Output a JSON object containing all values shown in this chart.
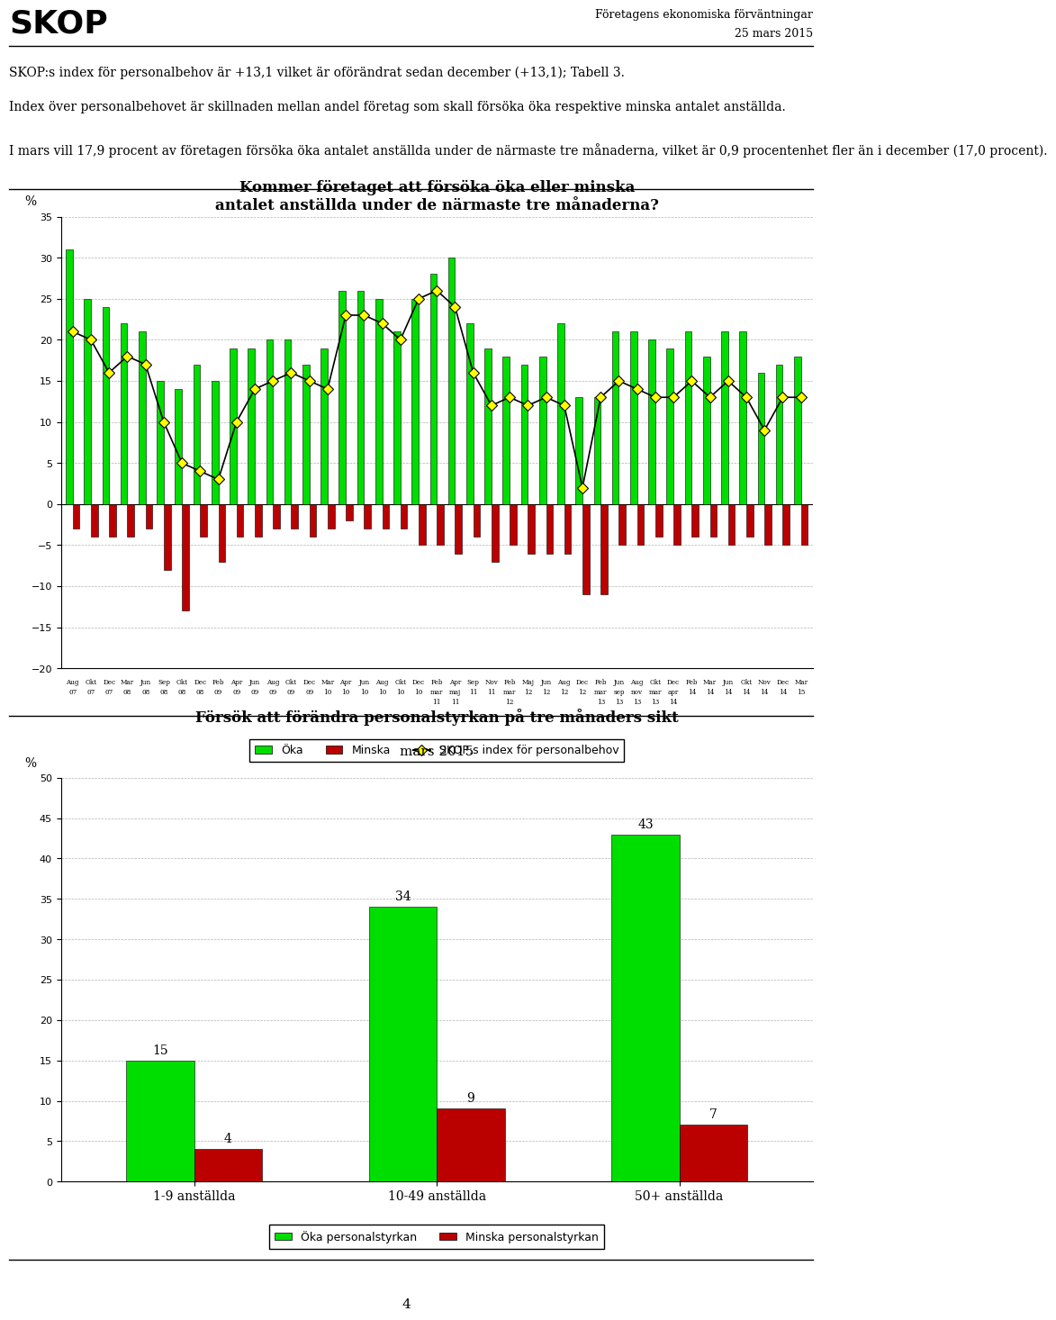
{
  "skop_label": "SKOP",
  "header_right_line1": "Företagens ekonomiska förväntningar",
  "header_right_line2": "25 mars 2015",
  "text1": "SKOP:s index för personalbehov är +13,1 vilket är oförändrat sedan december (+13,1); Tabell 3.",
  "text2": "Index över personalbehovet är skillnaden mellan andel företag som skall försöka öka respektive minska antalet anställda.",
  "text3": "I mars vill 17,9 procent av företagen försöka öka antalet anställda under de närmaste tre månaderna, vilket är 0,9 procentenhet fler än i december (17,0 procent).",
  "chart1_title_line1": "Kommer företaget att försöka öka eller minska",
  "chart1_title_line2": "antalet anställda under de närmaste tre månaderna?",
  "chart1_ylabel": "%",
  "chart1_ylim": [
    -20,
    35
  ],
  "chart1_yticks": [
    -20,
    -15,
    -10,
    -5,
    0,
    5,
    10,
    15,
    20,
    25,
    30,
    35
  ],
  "chart1_x_labels_row1": [
    "Aug",
    "Okt",
    "Dec",
    "Mar",
    "Jun",
    "Sep",
    "Okt",
    "Dec",
    "Feb",
    "Apr",
    "Jun",
    "Aug",
    "Okt",
    "Dec",
    "Mar",
    "Apr",
    "Jun",
    "Aug",
    "Okt",
    "Dec",
    "Feb",
    "Apr",
    "Sep",
    "Nov",
    "Feb",
    "Maj",
    "Jun",
    "Aug",
    "Dec",
    "Feb",
    "Jun",
    "Aug",
    "Okt",
    "Dec",
    "Feb",
    "Mar",
    "Jun",
    "Okt",
    "Nov",
    "Dec",
    "Mar"
  ],
  "chart1_x_labels_row2": [
    "07",
    "07",
    "07",
    "08",
    "08",
    "08",
    "08",
    "08",
    "09",
    "09",
    "09",
    "09",
    "09",
    "09",
    "10",
    "10",
    "10",
    "10",
    "10",
    "10",
    "mar",
    "maj",
    "11",
    "11",
    "mar",
    "12",
    "12",
    "12",
    "12",
    "mar",
    "sep",
    "nov",
    "mar",
    "apr",
    "14",
    "14",
    "14",
    "14",
    "14",
    "14",
    "15"
  ],
  "chart1_x_labels_row3": [
    "",
    "",
    "",
    "",
    "",
    "",
    "",
    "",
    "",
    "",
    "",
    "",
    "",
    "",
    "",
    "",
    "",
    "",
    "",
    "",
    "11",
    "11",
    "",
    "",
    "12",
    "",
    "",
    "",
    "",
    "13",
    "13",
    "13",
    "13",
    "14",
    "",
    "",
    "",
    "",
    "",
    "",
    ""
  ],
  "chart1_green_bars": [
    31,
    25,
    24,
    22,
    21,
    15,
    14,
    17,
    15,
    19,
    19,
    20,
    20,
    17,
    19,
    26,
    26,
    25,
    21,
    25,
    28,
    30,
    22,
    19,
    18,
    17,
    18,
    22,
    13,
    13,
    21,
    21,
    20,
    19,
    21,
    18,
    21,
    21,
    16,
    17,
    18
  ],
  "chart1_red_bars": [
    -3,
    -4,
    -4,
    -4,
    -3,
    -8,
    -13,
    -4,
    -7,
    -4,
    -4,
    -3,
    -3,
    -4,
    -3,
    -2,
    -3,
    -3,
    -3,
    -5,
    -5,
    -6,
    -4,
    -7,
    -5,
    -6,
    -6,
    -6,
    -11,
    -11,
    -5,
    -5,
    -4,
    -5,
    -4,
    -4,
    -5,
    -4,
    -5,
    -5,
    -5
  ],
  "chart1_line_values": [
    21,
    20,
    16,
    18,
    17,
    10,
    5,
    4,
    3,
    10,
    14,
    15,
    16,
    15,
    14,
    23,
    23,
    22,
    20,
    25,
    26,
    24,
    16,
    12,
    13,
    12,
    13,
    12,
    2,
    13,
    15,
    14,
    13,
    13,
    15,
    13,
    15,
    13,
    9,
    13,
    13
  ],
  "legend1_green": "Öka",
  "legend1_red": "Minska",
  "legend1_line": "SKOP:s index för personalbehov",
  "chart2_title": "Försök att förändra personalstyrkan på tre månaders sikt",
  "chart2_subtitle": "mars 2015",
  "chart2_categories": [
    "1-9 anställda",
    "10-49 anställda",
    "50+ anställda"
  ],
  "chart2_green": [
    15,
    34,
    43
  ],
  "chart2_red": [
    4,
    9,
    7
  ],
  "chart2_ylabel": "%",
  "chart2_ylim": [
    0,
    50
  ],
  "chart2_yticks": [
    0,
    5,
    10,
    15,
    20,
    25,
    30,
    35,
    40,
    45,
    50
  ],
  "legend2_green": "Öka personalstyrkan",
  "legend2_red": "Minska personalstyrkan",
  "green_color": "#00DD00",
  "red_color": "#BB0000",
  "yellow_color": "#FFFF00",
  "page_number": "4",
  "bg_color": "#FFFFFF"
}
